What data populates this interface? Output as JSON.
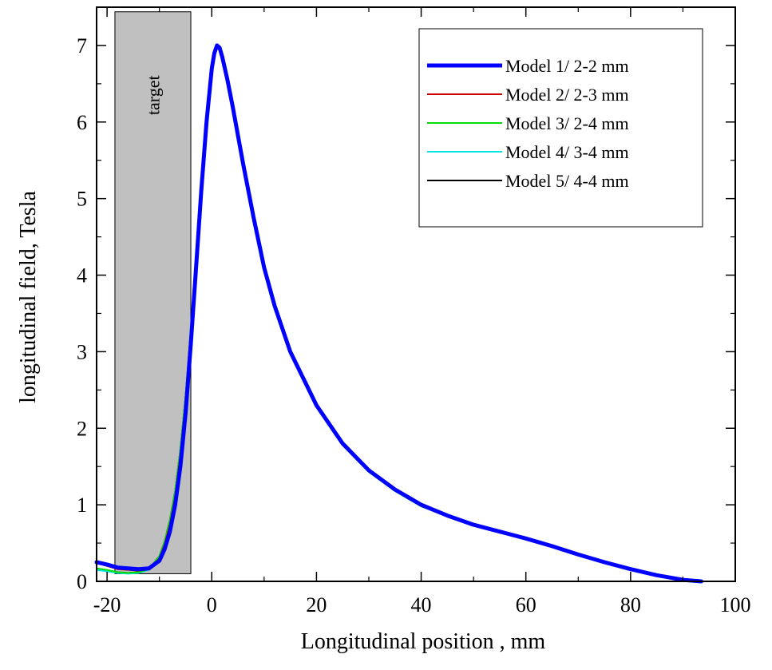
{
  "chart_data": {
    "type": "line",
    "xlabel": "Longitudinal position , mm",
    "ylabel": "longitudinal field, Tesla",
    "xlim": [
      -22,
      100
    ],
    "ylim": [
      0,
      7.5
    ],
    "xticks": [
      -20,
      0,
      20,
      40,
      60,
      80,
      100
    ],
    "yticks": [
      0,
      1,
      2,
      3,
      4,
      5,
      6,
      7
    ],
    "grid": false,
    "legend_position": "top-right",
    "annotations": [
      {
        "label": "target",
        "x_range": [
          -18.5,
          -4
        ],
        "y_range": [
          0.1,
          7.44
        ],
        "color": "#c0c0c0"
      }
    ],
    "series": [
      {
        "name": "Model 1/ 2-2 mm",
        "color": "#0000ff",
        "x": [
          -22,
          -20,
          -18,
          -16,
          -14,
          -12,
          -10,
          -9,
          -8,
          -7,
          -6,
          -5,
          -4,
          -3,
          -2,
          -1,
          0,
          0.5,
          1,
          1.5,
          2,
          3,
          4,
          6,
          8,
          10,
          12,
          15,
          20,
          25,
          30,
          35,
          40,
          45,
          50,
          55,
          60,
          65,
          70,
          75,
          80,
          85,
          90,
          93.5
        ],
        "y": [
          0.25,
          0.22,
          0.18,
          0.17,
          0.16,
          0.17,
          0.27,
          0.42,
          0.65,
          1.0,
          1.5,
          2.2,
          3.1,
          4.1,
          5.1,
          6.0,
          6.7,
          6.9,
          7.0,
          6.97,
          6.85,
          6.55,
          6.2,
          5.45,
          4.75,
          4.1,
          3.6,
          3.0,
          2.3,
          1.8,
          1.45,
          1.2,
          1.0,
          0.86,
          0.74,
          0.65,
          0.56,
          0.46,
          0.35,
          0.25,
          0.16,
          0.08,
          0.02,
          0.0
        ]
      },
      {
        "name": "Model 2/ 2-3 mm",
        "color": "#cc0000",
        "x": [
          -22,
          -20,
          -18,
          -16,
          -14,
          -12,
          -10,
          -9,
          -8,
          -7,
          -6,
          -5,
          -4,
          -3,
          -2,
          -1,
          0,
          0.5,
          1,
          1.5,
          2,
          3,
          4,
          6,
          8,
          10,
          12,
          15,
          20,
          25,
          30,
          35,
          40,
          45,
          50,
          55,
          60,
          65,
          70,
          75,
          80,
          85,
          90,
          93.5
        ],
        "y": [
          0.24,
          0.2,
          0.16,
          0.15,
          0.14,
          0.16,
          0.3,
          0.48,
          0.74,
          1.1,
          1.65,
          2.35,
          3.2,
          4.15,
          5.1,
          6.0,
          6.7,
          6.9,
          7.0,
          6.97,
          6.85,
          6.55,
          6.2,
          5.45,
          4.75,
          4.1,
          3.6,
          3.0,
          2.3,
          1.8,
          1.45,
          1.2,
          1.0,
          0.86,
          0.74,
          0.65,
          0.56,
          0.46,
          0.35,
          0.25,
          0.16,
          0.08,
          0.02,
          0.0
        ]
      },
      {
        "name": "Model 3/ 2-4 mm",
        "color": "#00dd00",
        "x": [
          -22,
          -20,
          -18,
          -16,
          -14,
          -12,
          -10,
          -9,
          -8,
          -7,
          -6,
          -5,
          -4,
          -3,
          -2,
          -1,
          0,
          0.5,
          1,
          1.5,
          2,
          3,
          4,
          6,
          8,
          10,
          12,
          15,
          20,
          25,
          30,
          35,
          40,
          45,
          50,
          55,
          60,
          65,
          70,
          75,
          80,
          85,
          90,
          93.5
        ],
        "y": [
          0.17,
          0.15,
          0.12,
          0.11,
          0.12,
          0.16,
          0.33,
          0.52,
          0.8,
          1.18,
          1.72,
          2.42,
          3.25,
          4.2,
          5.12,
          6.0,
          6.7,
          6.9,
          7.0,
          6.97,
          6.85,
          6.55,
          6.2,
          5.42,
          4.72,
          4.07,
          3.57,
          2.97,
          2.28,
          1.78,
          1.43,
          1.18,
          0.98,
          0.85,
          0.73,
          0.64,
          0.55,
          0.45,
          0.34,
          0.24,
          0.15,
          0.07,
          0.02,
          0.0
        ]
      },
      {
        "name": "Model 4/ 3-4 mm",
        "color": "#00e5e5",
        "x": [
          -22,
          -20,
          -18,
          -16,
          -14,
          -12,
          -10,
          -9,
          -8,
          -7,
          -6,
          -5,
          -4,
          -3,
          -2,
          -1,
          0,
          0.5,
          1,
          1.5,
          2,
          3,
          4,
          6,
          8,
          10,
          12,
          15,
          20,
          25,
          30,
          35,
          40,
          45,
          50,
          55,
          60,
          65,
          70,
          75,
          80,
          85,
          90,
          93.5
        ],
        "y": [
          0.15,
          0.13,
          0.11,
          0.1,
          0.11,
          0.15,
          0.32,
          0.5,
          0.78,
          1.15,
          1.7,
          2.4,
          3.25,
          4.2,
          5.12,
          6.0,
          6.7,
          6.9,
          7.0,
          6.97,
          6.85,
          6.55,
          6.2,
          5.42,
          4.72,
          4.07,
          3.57,
          2.97,
          2.28,
          1.78,
          1.43,
          1.18,
          0.98,
          0.85,
          0.73,
          0.64,
          0.55,
          0.45,
          0.34,
          0.24,
          0.15,
          0.07,
          0.02,
          0.0
        ]
      },
      {
        "name": "Model 5/ 4-4 mm",
        "color": "#000000",
        "x": [
          -22,
          -20,
          -18,
          -16,
          -14,
          -12,
          -10,
          -9,
          -8,
          -7,
          -6,
          -5,
          -4,
          -3,
          -2,
          -1,
          0,
          0.5,
          1,
          1.5,
          2,
          3,
          4,
          6,
          8,
          10,
          12,
          15,
          20,
          25,
          30,
          35,
          40,
          45,
          50,
          55,
          60,
          65,
          70,
          75,
          80,
          85,
          90,
          93.5
        ],
        "y": [
          0.16,
          0.14,
          0.12,
          0.11,
          0.12,
          0.16,
          0.33,
          0.52,
          0.8,
          1.18,
          1.72,
          2.42,
          3.28,
          4.22,
          5.14,
          6.0,
          6.7,
          6.9,
          7.0,
          6.97,
          6.85,
          6.55,
          6.2,
          5.45,
          4.75,
          4.1,
          3.6,
          3.0,
          2.3,
          1.8,
          1.45,
          1.2,
          1.0,
          0.86,
          0.74,
          0.65,
          0.56,
          0.46,
          0.35,
          0.25,
          0.16,
          0.08,
          0.02,
          0.0
        ]
      }
    ]
  }
}
